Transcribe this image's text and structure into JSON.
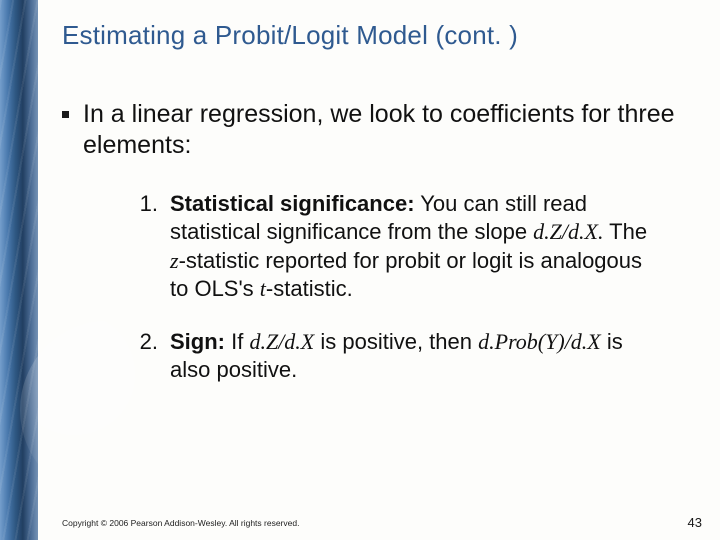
{
  "title": "Estimating a Probit/Logit Model (cont. )",
  "bullet": "In a linear regression, we look to coefficients for three elements:",
  "items": [
    {
      "num": "1.",
      "lead": "Statistical significance:",
      "p1": " You can still read statistical significance from the slope ",
      "m1": "d.Z/d.X.",
      "p2": " The ",
      "m2": "z",
      "p3": "-statistic reported for probit or logit is analogous to OLS's ",
      "m3": "t",
      "p4": "-statistic."
    },
    {
      "num": "2.",
      "lead": "Sign:",
      "p1": " If ",
      "m1": "d.Z/d.X",
      "p2": " is positive, then ",
      "m2": "d.Prob(Y)/d.X",
      "p3": " is also positive.",
      "m3": "",
      "p4": ""
    }
  ],
  "copyright": "Copyright © 2006 Pearson Addison-Wesley. All rights reserved.",
  "page": "43"
}
